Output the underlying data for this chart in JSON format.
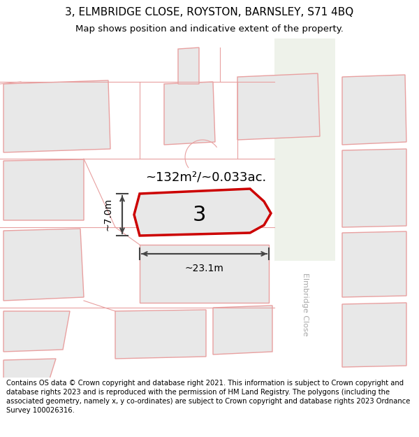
{
  "title_line1": "3, ELMBRIDGE CLOSE, ROYSTON, BARNSLEY, S71 4BQ",
  "title_line2": "Map shows position and indicative extent of the property.",
  "footer_text": "Contains OS data © Crown copyright and database right 2021. This information is subject to Crown copyright and database rights 2023 and is reproduced with the permission of HM Land Registry. The polygons (including the associated geometry, namely x, y co-ordinates) are subject to Crown copyright and database rights 2023 Ordnance Survey 100026316.",
  "area_label": "~132m²/~0.033ac.",
  "property_number": "3",
  "width_label": "~23.1m",
  "height_label": "~7.0m",
  "map_bg": "#f0ece8",
  "road_bg": "#ffffff",
  "plot_fill": "#e8e8e8",
  "plot_stroke": "#e8a0a0",
  "highlight_fill": "#e8e8e8",
  "highlight_stroke": "#cc0000",
  "road_right_bg": "#eaeee8",
  "title_fontsize": 11,
  "sub_fontsize": 9.5,
  "footer_fontsize": 7.2
}
